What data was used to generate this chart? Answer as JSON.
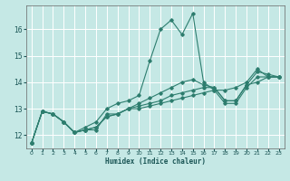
{
  "title": "",
  "xlabel": "Humidex (Indice chaleur)",
  "ylabel": "",
  "background_color": "#c5e8e5",
  "grid_color": "#ffffff",
  "line_color": "#2d7d6e",
  "xlim": [
    -0.5,
    23.5
  ],
  "ylim": [
    11.5,
    16.9
  ],
  "yticks": [
    12,
    13,
    14,
    15,
    16
  ],
  "xticks": [
    0,
    1,
    2,
    3,
    4,
    5,
    6,
    7,
    8,
    9,
    10,
    11,
    12,
    13,
    14,
    15,
    16,
    17,
    18,
    19,
    20,
    21,
    22,
    23
  ],
  "lines": [
    {
      "x": [
        0,
        1,
        2,
        3,
        4,
        5,
        6,
        7,
        8,
        9,
        10,
        11,
        12,
        13,
        14,
        15,
        16,
        17,
        18,
        19,
        20,
        21,
        22,
        23
      ],
      "y": [
        11.7,
        12.9,
        12.8,
        12.5,
        12.1,
        12.2,
        12.2,
        12.8,
        12.8,
        13.0,
        13.0,
        13.1,
        13.2,
        13.3,
        13.4,
        13.5,
        13.6,
        13.7,
        13.2,
        13.2,
        13.8,
        14.2,
        14.2,
        14.2
      ]
    },
    {
      "x": [
        0,
        1,
        2,
        3,
        4,
        5,
        6,
        7,
        8,
        9,
        10,
        11,
        12,
        13,
        14,
        15,
        16,
        17,
        18,
        19,
        20,
        21,
        22,
        23
      ],
      "y": [
        11.7,
        12.9,
        12.8,
        12.5,
        12.1,
        12.3,
        12.5,
        13.0,
        13.2,
        13.3,
        13.5,
        14.8,
        16.0,
        16.35,
        15.8,
        16.6,
        14.0,
        13.7,
        13.7,
        13.8,
        14.0,
        14.5,
        14.2,
        14.2
      ]
    },
    {
      "x": [
        0,
        1,
        2,
        3,
        4,
        5,
        6,
        7,
        8,
        9,
        10,
        11,
        12,
        13,
        14,
        15,
        16,
        17,
        18,
        19,
        20,
        21,
        22,
        23
      ],
      "y": [
        11.7,
        12.9,
        12.8,
        12.5,
        12.1,
        12.2,
        12.3,
        12.7,
        12.8,
        13.0,
        13.1,
        13.2,
        13.3,
        13.5,
        13.6,
        13.7,
        13.8,
        13.8,
        13.3,
        13.3,
        13.9,
        14.4,
        14.3,
        14.2
      ]
    },
    {
      "x": [
        0,
        1,
        2,
        3,
        4,
        5,
        6,
        7,
        8,
        9,
        10,
        11,
        12,
        13,
        14,
        15,
        16,
        17,
        18,
        19,
        20,
        21,
        22,
        23
      ],
      "y": [
        11.7,
        12.9,
        12.8,
        12.5,
        12.1,
        12.2,
        12.3,
        12.7,
        12.8,
        13.0,
        13.2,
        13.4,
        13.6,
        13.8,
        14.0,
        14.1,
        13.9,
        13.8,
        13.3,
        13.3,
        13.9,
        14.0,
        14.2,
        14.2
      ]
    }
  ]
}
